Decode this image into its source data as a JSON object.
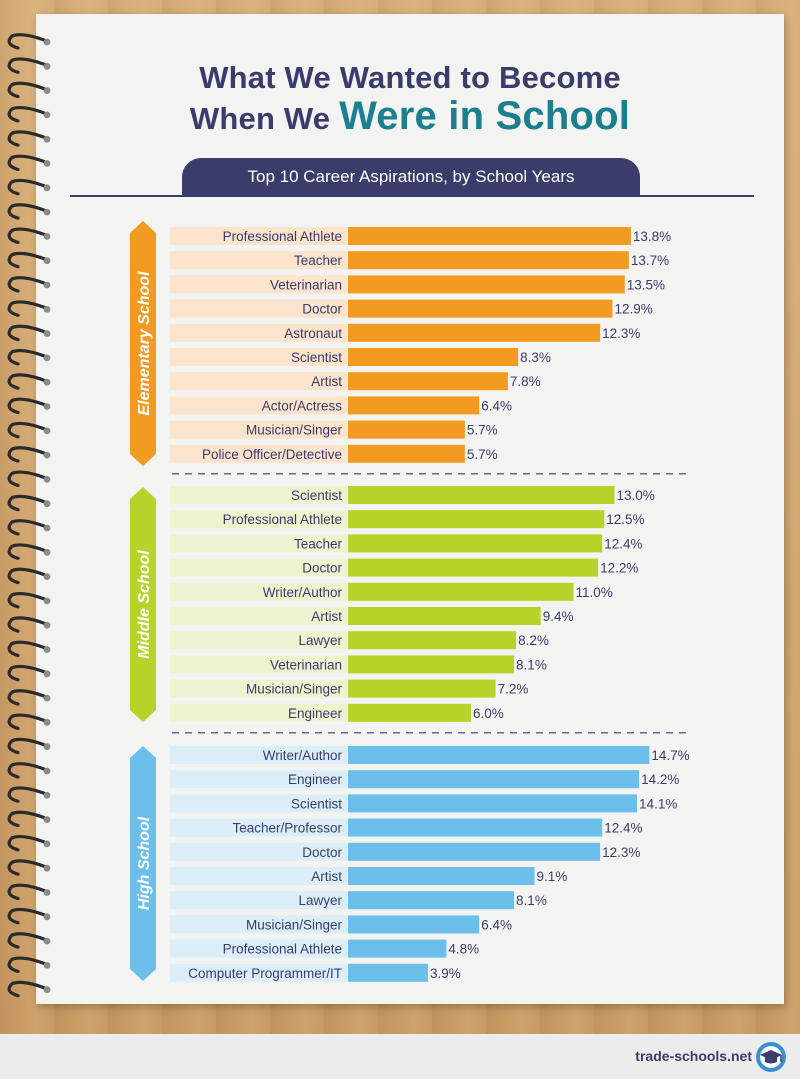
{
  "title": {
    "line1": "What We Wanted to Become",
    "line2_prefix": "When We ",
    "line2_highlight": "Were in School"
  },
  "subtitle": "Top 10 Career Aspirations, by School Years",
  "footer": {
    "site": "trade-schools.net"
  },
  "colors": {
    "elementary": "#f39a22",
    "elementary_bg": "#fbe3cc",
    "middle": "#b9d229",
    "middle_bg": "#eef2cf",
    "high": "#6bbfea",
    "high_bg": "#dbeef8",
    "navy": "#3a3d6b",
    "teal": "#1b7f8f"
  },
  "chart_data": {
    "type": "bar",
    "orientation": "horizontal",
    "value_unit": "%",
    "xlim": [
      0,
      15
    ],
    "groups": [
      {
        "name": "Elementary School",
        "categories": [
          "Professional Athlete",
          "Teacher",
          "Veterinarian",
          "Doctor",
          "Astronaut",
          "Scientist",
          "Artist",
          "Actor/Actress",
          "Musician/Singer",
          "Police Officer/Detective"
        ],
        "values": [
          13.8,
          13.7,
          13.5,
          12.9,
          12.3,
          8.3,
          7.8,
          6.4,
          5.7,
          5.7
        ],
        "labels": [
          "13.8%",
          "13.7%",
          "13.5%",
          "12.9%",
          "12.3%",
          "8.3%",
          "7.8%",
          "6.4%",
          "5.7%",
          "5.7%"
        ]
      },
      {
        "name": "Middle School",
        "categories": [
          "Scientist",
          "Professional Athlete",
          "Teacher",
          "Doctor",
          "Writer/Author",
          "Artist",
          "Lawyer",
          "Veterinarian",
          "Musician/Singer",
          "Engineer"
        ],
        "values": [
          13.0,
          12.5,
          12.4,
          12.2,
          11.0,
          9.4,
          8.2,
          8.1,
          7.2,
          6.0
        ],
        "labels": [
          "13.0%",
          "12.5%",
          "12.4%",
          "12.2%",
          "11.0%",
          "9.4%",
          "8.2%",
          "8.1%",
          "7.2%",
          "6.0%"
        ]
      },
      {
        "name": "High School",
        "categories": [
          "Writer/Author",
          "Engineer",
          "Scientist",
          "Teacher/Professor",
          "Doctor",
          "Artist",
          "Lawyer",
          "Musician/Singer",
          "Professional Athlete",
          "Computer Programmer/IT"
        ],
        "values": [
          14.7,
          14.2,
          14.1,
          12.4,
          12.3,
          9.1,
          8.1,
          6.4,
          4.8,
          3.9
        ],
        "labels": [
          "14.7%",
          "14.2%",
          "14.1%",
          "12.4%",
          "12.3%",
          "9.1%",
          "8.1%",
          "6.4%",
          "4.8%",
          "3.9%"
        ]
      }
    ]
  }
}
